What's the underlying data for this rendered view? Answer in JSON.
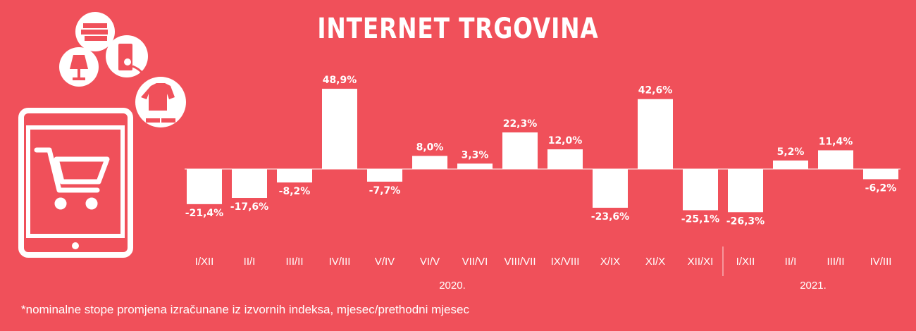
{
  "title": "INTERNET TRGOVINA",
  "footnote": "*nominalne stope promjena izračunane iz izvornih indeksa, mjesec/prethodni mjesec",
  "colors": {
    "background": "#f0505a",
    "bar": "#ffffff"
  },
  "icons": [
    "tablet-icon",
    "shopping-cart-icon",
    "books-icon",
    "lamp-icon",
    "fridge-icon",
    "clothes-icon"
  ],
  "chart_data": {
    "type": "bar",
    "title": "INTERNET TRGOVINA",
    "categories": [
      "I/XII",
      "II/I",
      "III/II",
      "IV/III",
      "V/IV",
      "VI/V",
      "VII/VI",
      "VIII/VII",
      "IX/VIII",
      "X/IX",
      "XI/X",
      "XII/XI",
      "I/XII",
      "II/I",
      "III/II",
      "IV/III"
    ],
    "values": [
      -21.4,
      -17.6,
      -8.2,
      48.9,
      -7.7,
      8.0,
      3.3,
      22.3,
      12.0,
      -23.6,
      42.6,
      -25.1,
      -26.3,
      5.2,
      11.4,
      -6.2
    ],
    "value_labels": [
      "-21,4%",
      "-17,6%",
      "-8,2%",
      "48,9%",
      "-7,7%",
      "8,0%",
      "3,3%",
      "22,3%",
      "12,0%",
      "-23,6%",
      "42,6%",
      "-25,1%",
      "-26,3%",
      "5,2%",
      "11,4%",
      "-6,2%"
    ],
    "groups": [
      {
        "label": "2020.",
        "start": 0,
        "end": 11
      },
      {
        "label": "2021.",
        "start": 12,
        "end": 15
      }
    ],
    "ylim": [
      -30,
      55
    ],
    "grid": false,
    "legend": "none"
  }
}
